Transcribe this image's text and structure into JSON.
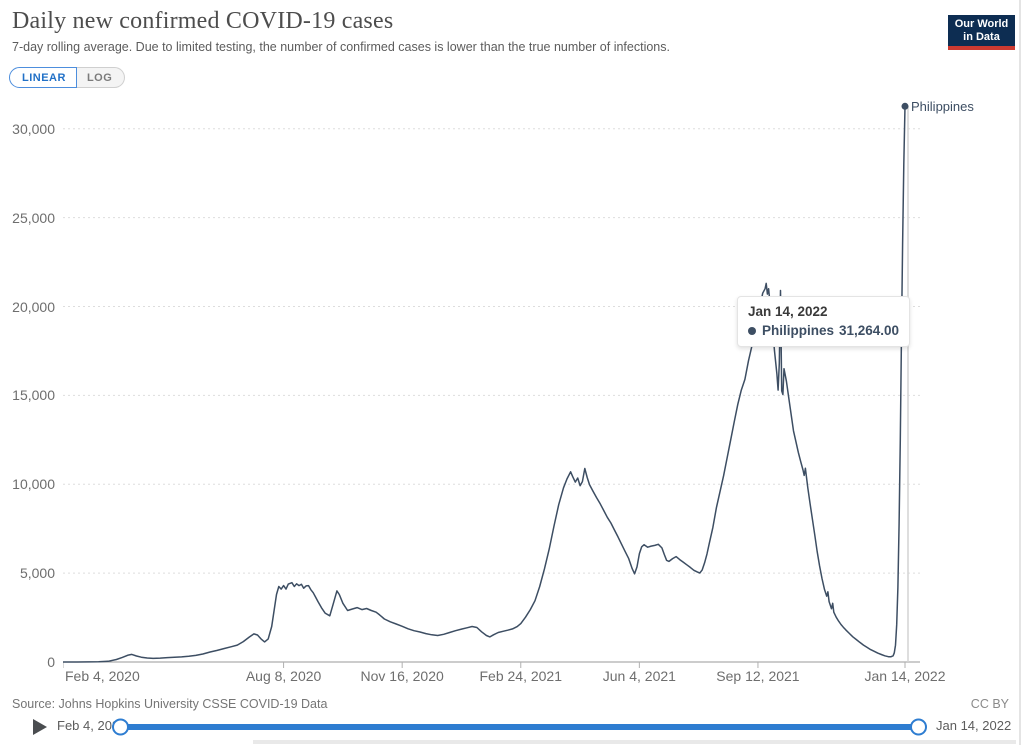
{
  "header": {
    "title": "Daily new confirmed COVID-19 cases",
    "subtitle": "7-day rolling average. Due to limited testing, the number of confirmed cases is lower than the true number of infections."
  },
  "logo": {
    "line1": "Our World",
    "line2": "in Data",
    "bg_color": "#0d2d52",
    "accent_color": "#cc3a31"
  },
  "controls": {
    "linear_label": "LINEAR",
    "log_label": "LOG",
    "active": "LINEAR"
  },
  "tooltip": {
    "date": "Jan 14, 2022",
    "series_name": "Philippines",
    "value": "31,264.00",
    "dot_color": "#3d4e63"
  },
  "footer": {
    "source": "Source: Johns Hopkins University CSSE COVID-19 Data",
    "license": "CC BY"
  },
  "timeline": {
    "start_label": "Feb 4, 2020",
    "end_label": "Jan 14, 2022",
    "accent_color": "#2e7dd1"
  },
  "chart_data": {
    "type": "line",
    "title": "Daily new confirmed COVID-19 cases",
    "xlabel": "",
    "ylabel": "",
    "x_range": [
      "Feb 4, 2020",
      "Jan 14, 2022"
    ],
    "x_total_days": 710,
    "ylim": [
      0,
      31900
    ],
    "grid": "horizontal dashed",
    "legend_position": "end-of-line label",
    "end_label": "Philippines",
    "hover_day": 710,
    "y_ticks": [
      {
        "value": 0,
        "label": "0"
      },
      {
        "value": 5000,
        "label": "5,000"
      },
      {
        "value": 10000,
        "label": "10,000"
      },
      {
        "value": 15000,
        "label": "15,000"
      },
      {
        "value": 20000,
        "label": "20,000"
      },
      {
        "value": 25000,
        "label": "25,000"
      },
      {
        "value": 30000,
        "label": "30,000"
      }
    ],
    "x_ticks": [
      {
        "day": 0,
        "label": "Feb 4, 2020"
      },
      {
        "day": 186,
        "label": "Aug 8, 2020"
      },
      {
        "day": 286,
        "label": "Nov 16, 2020"
      },
      {
        "day": 386,
        "label": "Feb 24, 2021"
      },
      {
        "day": 486,
        "label": "Jun 4, 2021"
      },
      {
        "day": 586,
        "label": "Sep 12, 2021"
      },
      {
        "day": 710,
        "label": "Jan 14, 2022"
      }
    ],
    "series": [
      {
        "name": "Philippines",
        "color": "#3d4e63",
        "last_value": 31264,
        "points_day_value": [
          [
            0,
            1
          ],
          [
            12,
            1
          ],
          [
            22,
            4
          ],
          [
            30,
            10
          ],
          [
            38,
            40
          ],
          [
            45,
            140
          ],
          [
            50,
            260
          ],
          [
            55,
            390
          ],
          [
            58,
            430
          ],
          [
            62,
            340
          ],
          [
            66,
            270
          ],
          [
            71,
            225
          ],
          [
            76,
            205
          ],
          [
            82,
            220
          ],
          [
            88,
            245
          ],
          [
            94,
            265
          ],
          [
            100,
            285
          ],
          [
            106,
            320
          ],
          [
            112,
            370
          ],
          [
            118,
            450
          ],
          [
            124,
            560
          ],
          [
            130,
            650
          ],
          [
            136,
            760
          ],
          [
            142,
            860
          ],
          [
            147,
            950
          ],
          [
            152,
            1150
          ],
          [
            157,
            1400
          ],
          [
            161,
            1580
          ],
          [
            164,
            1520
          ],
          [
            167,
            1300
          ],
          [
            170,
            1130
          ],
          [
            173,
            1300
          ],
          [
            176,
            2000
          ],
          [
            178,
            2900
          ],
          [
            180,
            3800
          ],
          [
            182,
            4250
          ],
          [
            184,
            4100
          ],
          [
            186,
            4300
          ],
          [
            188,
            4100
          ],
          [
            190,
            4380
          ],
          [
            193,
            4460
          ],
          [
            195,
            4250
          ],
          [
            197,
            4400
          ],
          [
            199,
            4300
          ],
          [
            201,
            4370
          ],
          [
            203,
            4150
          ],
          [
            205,
            4280
          ],
          [
            207,
            4300
          ],
          [
            209,
            4060
          ],
          [
            211,
            3900
          ],
          [
            213,
            3650
          ],
          [
            215,
            3400
          ],
          [
            218,
            3050
          ],
          [
            221,
            2750
          ],
          [
            225,
            2600
          ],
          [
            228,
            3300
          ],
          [
            231,
            4000
          ],
          [
            233,
            3800
          ],
          [
            236,
            3300
          ],
          [
            240,
            2900
          ],
          [
            244,
            2980
          ],
          [
            248,
            3060
          ],
          [
            252,
            2950
          ],
          [
            256,
            3010
          ],
          [
            260,
            2900
          ],
          [
            264,
            2800
          ],
          [
            267,
            2650
          ],
          [
            271,
            2420
          ],
          [
            276,
            2260
          ],
          [
            281,
            2140
          ],
          [
            286,
            2010
          ],
          [
            291,
            1870
          ],
          [
            296,
            1760
          ],
          [
            301,
            1690
          ],
          [
            306,
            1600
          ],
          [
            311,
            1530
          ],
          [
            316,
            1490
          ],
          [
            321,
            1560
          ],
          [
            326,
            1660
          ],
          [
            331,
            1760
          ],
          [
            336,
            1850
          ],
          [
            341,
            1930
          ],
          [
            345,
            2000
          ],
          [
            349,
            1940
          ],
          [
            353,
            1700
          ],
          [
            357,
            1490
          ],
          [
            360,
            1410
          ],
          [
            363,
            1530
          ],
          [
            367,
            1660
          ],
          [
            371,
            1730
          ],
          [
            375,
            1790
          ],
          [
            379,
            1860
          ],
          [
            383,
            1990
          ],
          [
            386,
            2160
          ],
          [
            390,
            2520
          ],
          [
            394,
            2950
          ],
          [
            398,
            3450
          ],
          [
            402,
            4250
          ],
          [
            406,
            5250
          ],
          [
            410,
            6350
          ],
          [
            414,
            7650
          ],
          [
            418,
            8850
          ],
          [
            422,
            9800
          ],
          [
            425,
            10300
          ],
          [
            428,
            10700
          ],
          [
            430,
            10400
          ],
          [
            432,
            10120
          ],
          [
            434,
            10350
          ],
          [
            436,
            9920
          ],
          [
            438,
            10150
          ],
          [
            440,
            10886
          ],
          [
            442,
            10380
          ],
          [
            444,
            9980
          ],
          [
            447,
            9600
          ],
          [
            450,
            9230
          ],
          [
            453,
            8900
          ],
          [
            456,
            8520
          ],
          [
            459,
            8140
          ],
          [
            462,
            7820
          ],
          [
            465,
            7420
          ],
          [
            468,
            7040
          ],
          [
            471,
            6620
          ],
          [
            474,
            6220
          ],
          [
            477,
            5820
          ],
          [
            480,
            5250
          ],
          [
            482,
            4960
          ],
          [
            484,
            5350
          ],
          [
            486,
            6100
          ],
          [
            488,
            6480
          ],
          [
            490,
            6600
          ],
          [
            493,
            6460
          ],
          [
            496,
            6520
          ],
          [
            499,
            6560
          ],
          [
            502,
            6620
          ],
          [
            505,
            6420
          ],
          [
            507,
            6050
          ],
          [
            509,
            5720
          ],
          [
            511,
            5660
          ],
          [
            514,
            5820
          ],
          [
            517,
            5930
          ],
          [
            520,
            5760
          ],
          [
            523,
            5620
          ],
          [
            526,
            5470
          ],
          [
            529,
            5320
          ],
          [
            532,
            5160
          ],
          [
            535,
            5060
          ],
          [
            537,
            5010
          ],
          [
            539,
            5180
          ],
          [
            541,
            5580
          ],
          [
            543,
            6080
          ],
          [
            545,
            6680
          ],
          [
            548,
            7580
          ],
          [
            551,
            8680
          ],
          [
            554,
            9580
          ],
          [
            557,
            10480
          ],
          [
            560,
            11480
          ],
          [
            563,
            12500
          ],
          [
            566,
            13500
          ],
          [
            569,
            14500
          ],
          [
            572,
            15300
          ],
          [
            575,
            15900
          ],
          [
            578,
            16950
          ],
          [
            581,
            17800
          ],
          [
            584,
            18800
          ],
          [
            587,
            19750
          ],
          [
            590,
            20750
          ],
          [
            592,
            21000
          ],
          [
            593,
            21300
          ],
          [
            594,
            20700
          ],
          [
            595,
            21000
          ],
          [
            596,
            20300
          ],
          [
            598,
            19000
          ],
          [
            600,
            17500
          ],
          [
            602,
            16200
          ],
          [
            603,
            15300
          ],
          [
            604,
            16800
          ],
          [
            605,
            20900
          ],
          [
            606,
            15250
          ],
          [
            607,
            15050
          ],
          [
            608,
            16500
          ],
          [
            610,
            15800
          ],
          [
            612,
            14850
          ],
          [
            614,
            13900
          ],
          [
            616,
            13000
          ],
          [
            618,
            12400
          ],
          [
            620,
            11800
          ],
          [
            622,
            11300
          ],
          [
            624,
            10800
          ],
          [
            625,
            10500
          ],
          [
            626,
            10900
          ],
          [
            628,
            9800
          ],
          [
            630,
            8900
          ],
          [
            632,
            8000
          ],
          [
            634,
            7100
          ],
          [
            636,
            6200
          ],
          [
            638,
            5400
          ],
          [
            640,
            4700
          ],
          [
            642,
            4100
          ],
          [
            644,
            3700
          ],
          [
            645,
            3950
          ],
          [
            646,
            3400
          ],
          [
            648,
            3000
          ],
          [
            649,
            3300
          ],
          [
            650,
            2800
          ],
          [
            652,
            2520
          ],
          [
            654,
            2300
          ],
          [
            656,
            2110
          ],
          [
            658,
            1960
          ],
          [
            660,
            1810
          ],
          [
            663,
            1610
          ],
          [
            666,
            1420
          ],
          [
            669,
            1260
          ],
          [
            672,
            1100
          ],
          [
            675,
            950
          ],
          [
            678,
            820
          ],
          [
            681,
            700
          ],
          [
            684,
            600
          ],
          [
            687,
            500
          ],
          [
            690,
            420
          ],
          [
            693,
            350
          ],
          [
            696,
            300
          ],
          [
            698,
            290
          ],
          [
            700,
            350
          ],
          [
            701,
            520
          ],
          [
            702,
            950
          ],
          [
            703,
            2100
          ],
          [
            704,
            4200
          ],
          [
            705,
            7800
          ],
          [
            706,
            12500
          ],
          [
            707,
            18000
          ],
          [
            708,
            23500
          ],
          [
            709,
            28000
          ],
          [
            710,
            31264
          ]
        ]
      }
    ]
  }
}
